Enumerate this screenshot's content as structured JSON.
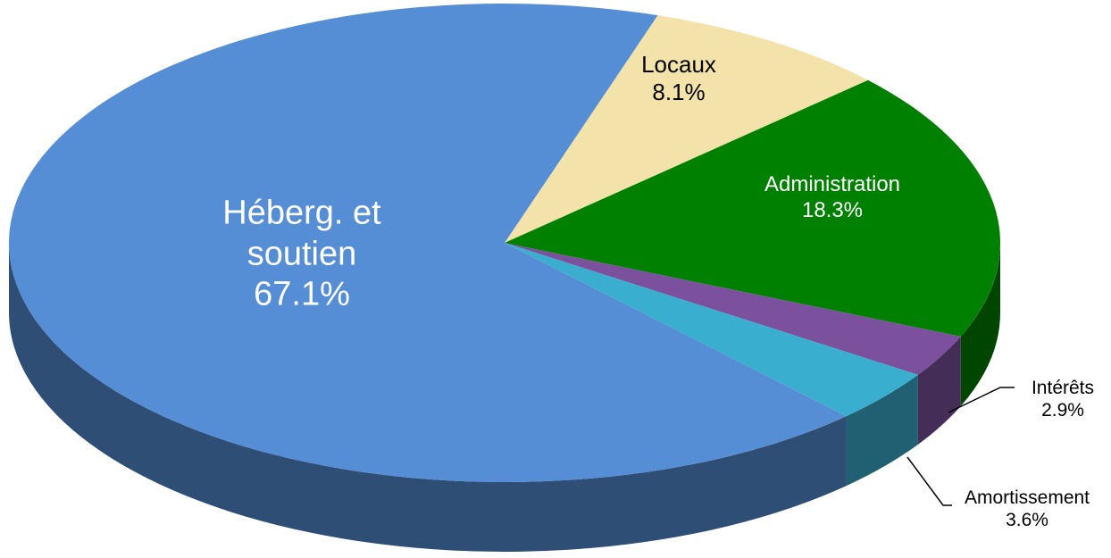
{
  "chart_data": {
    "type": "pie",
    "categories": [
      "Locaux",
      "Administration",
      "Intérêts",
      "Amortissement",
      "Héberg. et soutien"
    ],
    "values": [
      8.1,
      18.3,
      2.9,
      3.6,
      67.1
    ],
    "value_labels": [
      "8.1%",
      "18.3%",
      "2.9%",
      "3.6%",
      "67.1%"
    ],
    "colors": [
      "#f3e2a9",
      "#008000",
      "#7b519d",
      "#3aaecf",
      "#558ed5"
    ]
  }
}
